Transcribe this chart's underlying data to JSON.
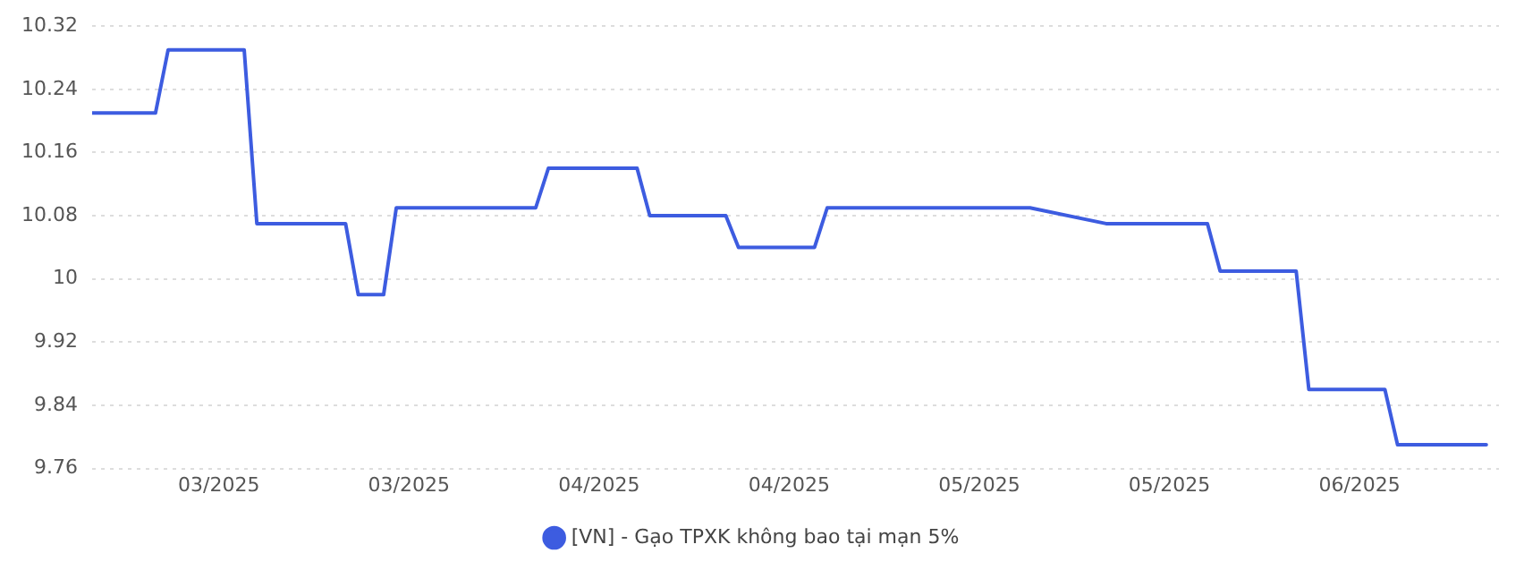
{
  "chart_data": {
    "type": "line",
    "x": [
      "2025-02-23",
      "2025-02-28",
      "2025-03-01",
      "2025-03-07",
      "2025-03-08",
      "2025-03-15",
      "2025-03-16",
      "2025-03-18",
      "2025-03-19",
      "2025-03-30",
      "2025-03-31",
      "2025-04-07",
      "2025-04-08",
      "2025-04-14",
      "2025-04-15",
      "2025-04-21",
      "2025-04-22",
      "2025-05-08",
      "2025-05-14",
      "2025-05-22",
      "2025-05-23",
      "2025-05-29",
      "2025-05-30",
      "2025-06-05",
      "2025-06-06",
      "2025-06-13"
    ],
    "series": [
      {
        "name": "[VN] - Gạo TPXK không bao tại mạn 5%",
        "color": "#3d5ce0",
        "values": [
          10.21,
          10.21,
          10.29,
          10.29,
          10.07,
          10.07,
          9.98,
          9.98,
          10.09,
          10.09,
          10.14,
          10.14,
          10.08,
          10.08,
          10.04,
          10.04,
          10.09,
          10.09,
          10.07,
          10.07,
          10.01,
          10.01,
          9.86,
          9.86,
          9.79,
          9.79
        ]
      }
    ],
    "xlim": [
      "2025-02-23",
      "2025-06-14"
    ],
    "xticks": [
      {
        "value": "2025-03-05",
        "label": "03/2025"
      },
      {
        "value": "2025-03-20",
        "label": "03/2025"
      },
      {
        "value": "2025-04-04",
        "label": "04/2025"
      },
      {
        "value": "2025-04-19",
        "label": "04/2025"
      },
      {
        "value": "2025-05-04",
        "label": "05/2025"
      },
      {
        "value": "2025-05-19",
        "label": "05/2025"
      },
      {
        "value": "2025-06-03",
        "label": "06/2025"
      }
    ],
    "ylim": [
      9.76,
      10.32
    ],
    "yticks": [
      9.76,
      9.84,
      9.92,
      10,
      10.08,
      10.16,
      10.24,
      10.32
    ],
    "grid": "y",
    "legend": "bottom",
    "marker": "none",
    "line_style": "solid"
  }
}
